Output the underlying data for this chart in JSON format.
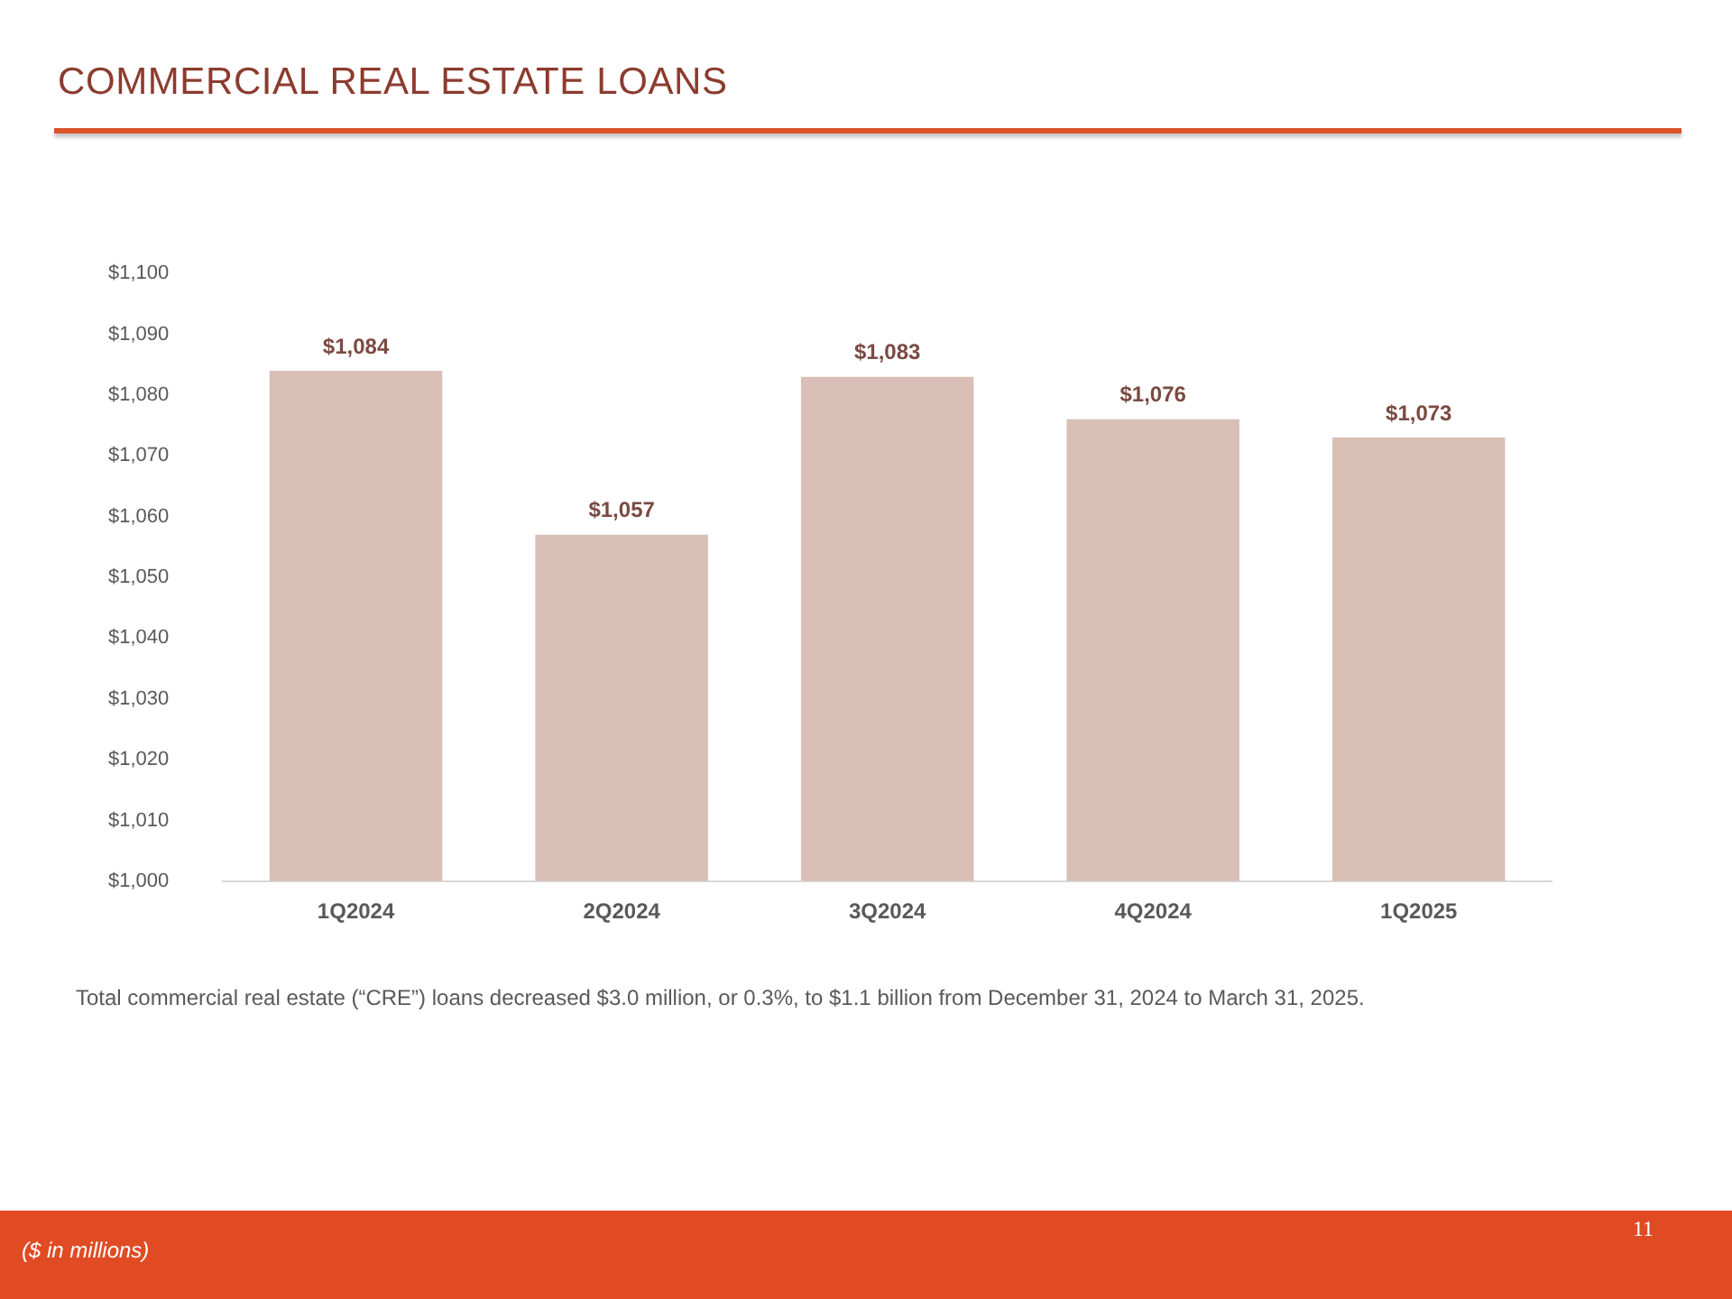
{
  "chart_data": {
    "type": "bar",
    "title": "COMMERCIAL REAL ESTATE LOANS",
    "categories": [
      "1Q2024",
      "2Q2024",
      "3Q2024",
      "4Q2024",
      "1Q2025"
    ],
    "values": [
      1084,
      1057,
      1083,
      1076,
      1073
    ],
    "value_labels": [
      "$1,084",
      "$1,057",
      "$1,083",
      "$1,076",
      "$1,073"
    ],
    "color": "#d9bfb6",
    "ylim": [
      1000,
      1100
    ],
    "yticks": [
      {
        "value": 1000,
        "label": "$1,000"
      },
      {
        "value": 1010,
        "label": "$1,010"
      },
      {
        "value": 1020,
        "label": "$1,020"
      },
      {
        "value": 1030,
        "label": "$1,030"
      },
      {
        "value": 1040,
        "label": "$1,040"
      },
      {
        "value": 1050,
        "label": "$1,050"
      },
      {
        "value": 1060,
        "label": "$1,060"
      },
      {
        "value": 1070,
        "label": "$1,070"
      },
      {
        "value": 1080,
        "label": "$1,080"
      },
      {
        "value": 1090,
        "label": "$1,090"
      },
      {
        "value": 1100,
        "label": "$1,100"
      }
    ],
    "grid": false,
    "legend": false,
    "annotations": [
      "Total commercial real estate (“CRE”) loans decreased $3.0 million, or 0.3%, to $1.1 billion from December 31, 2024 to March 31, 2025.",
      "($ in millions)",
      "11"
    ]
  }
}
